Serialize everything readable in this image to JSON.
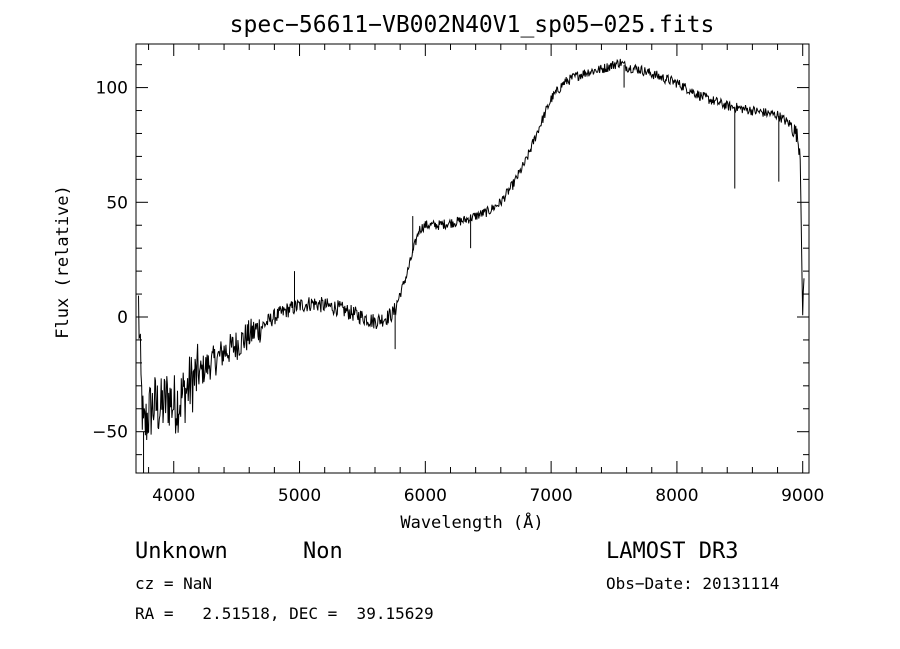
{
  "chart_data": {
    "type": "line",
    "title": "spec−56611−VB002N40V1_sp05−025.fits",
    "xlabel": "Wavelength (Å)",
    "ylabel": "Flux (relative)",
    "xlim": [
      3700,
      9050
    ],
    "ylim": [
      -68,
      119
    ],
    "xticks": [
      4000,
      5000,
      6000,
      7000,
      8000,
      9000
    ],
    "xtick_labels": [
      "4000",
      "5000",
      "6000",
      "7000",
      "8000",
      "9000"
    ],
    "yticks": [
      -50,
      0,
      50,
      100
    ],
    "ytick_labels": [
      "−50",
      "0",
      "50",
      "100"
    ],
    "series": [
      {
        "name": "flux",
        "x": [
          3720,
          3740,
          3760,
          3800,
          3850,
          3900,
          3950,
          4000,
          4050,
          4100,
          4150,
          4200,
          4250,
          4300,
          4350,
          4400,
          4450,
          4500,
          4550,
          4600,
          4700,
          4800,
          4900,
          5000,
          5100,
          5200,
          5300,
          5400,
          5500,
          5600,
          5700,
          5750,
          5800,
          5850,
          5900,
          5950,
          6000,
          6100,
          6200,
          6300,
          6400,
          6500,
          6600,
          6700,
          6800,
          6900,
          7000,
          7100,
          7200,
          7300,
          7400,
          7500,
          7550,
          7600,
          7700,
          7800,
          7900,
          8000,
          8100,
          8200,
          8300,
          8400,
          8500,
          8600,
          8700,
          8800,
          8850,
          8900,
          8950,
          8980,
          9000,
          9010
        ],
        "y": [
          5,
          -30,
          -50,
          -42,
          -38,
          -40,
          -35,
          -38,
          -36,
          -32,
          -28,
          -25,
          -22,
          -20,
          -18,
          -15,
          -14,
          -12,
          -10,
          -8,
          -4,
          0,
          3,
          5,
          6,
          5,
          4,
          2,
          0,
          -2,
          0,
          2,
          10,
          18,
          28,
          38,
          40,
          40,
          41,
          42,
          44,
          46,
          50,
          58,
          68,
          82,
          95,
          102,
          105,
          107,
          108,
          110,
          111,
          109,
          108,
          106,
          104,
          102,
          99,
          96,
          94,
          92,
          91,
          90,
          89,
          88,
          86,
          84,
          80,
          72,
          0,
          15
        ],
        "features": [
          {
            "x": 3760,
            "y": -68
          },
          {
            "x": 4960,
            "y": 20
          },
          {
            "x": 5760,
            "y": -14
          },
          {
            "x": 5900,
            "y": 44
          },
          {
            "x": 6360,
            "y": 30
          },
          {
            "x": 7580,
            "y": 100
          },
          {
            "x": 8460,
            "y": 56
          },
          {
            "x": 8810,
            "y": 59
          }
        ]
      }
    ]
  },
  "footer": {
    "object_class": "Unknown",
    "subclass": "Non",
    "survey": "LAMOST DR3",
    "redshift": "cz = NaN",
    "obs_date": "Obs−Date: 20131114",
    "coords": "RA =   2.51518, DEC =  39.15629"
  }
}
